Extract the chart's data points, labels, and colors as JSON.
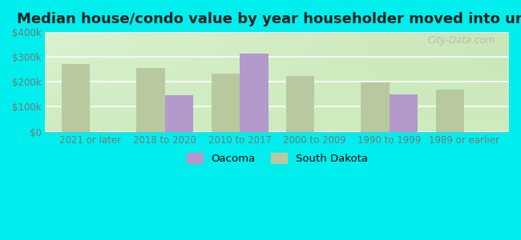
{
  "title": "Median house/condo value by year householder moved into unit",
  "categories": [
    "2021 or later",
    "2018 to 2020",
    "2010 to 2017",
    "2000 to 2009",
    "1990 to 1999",
    "1989 or earlier"
  ],
  "oacoma_values": [
    null,
    145000,
    315000,
    null,
    150000,
    null
  ],
  "south_dakota_values": [
    272000,
    255000,
    232000,
    225000,
    197000,
    168000
  ],
  "oacoma_color": "#b399cc",
  "south_dakota_color": "#b8c9a0",
  "bg_color": "#00eeee",
  "ylim": [
    0,
    400000
  ],
  "yticks": [
    0,
    100000,
    200000,
    300000,
    400000
  ],
  "ytick_labels": [
    "$0",
    "$100k",
    "$200k",
    "$300k",
    "$400k"
  ],
  "bar_width": 0.38,
  "watermark": "City-Data.com",
  "legend_oacoma": "Oacoma",
  "legend_sd": "South Dakota",
  "title_fontsize": 13,
  "tick_fontsize": 8.5,
  "grid_color": "#d0e8d0"
}
